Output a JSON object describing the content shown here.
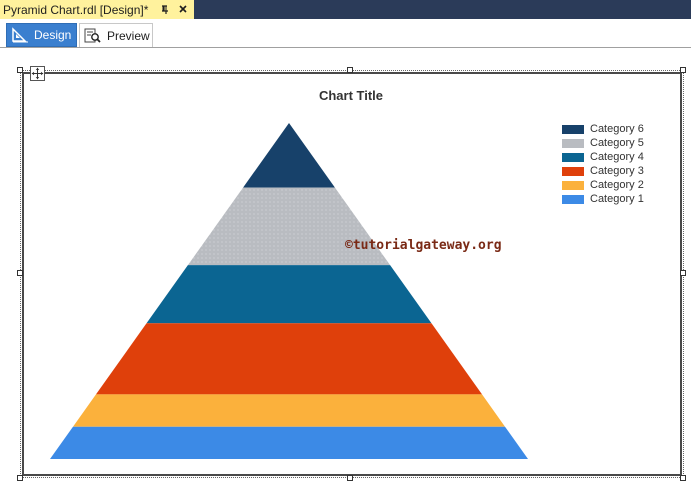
{
  "document_tab": {
    "title": "Pyramid Chart.rdl [Design]*",
    "accent": "#fff29d"
  },
  "view_tabs": [
    {
      "label": "Design",
      "active": true
    },
    {
      "label": "Preview",
      "active": false
    }
  ],
  "chart_data": {
    "type": "pyramid",
    "title": "Chart Title",
    "legend_position": "top-right",
    "categories": [
      "Category 6",
      "Category 5",
      "Category 4",
      "Category 3",
      "Category 2",
      "Category 1"
    ],
    "values": [
      1,
      1.2,
      0.9,
      1.1,
      0.5,
      0.5
    ],
    "colors": [
      "#17416a",
      "#b9bcc1",
      "#0b6592",
      "#df400b",
      "#fbb13c",
      "#3c8ae6"
    ]
  },
  "watermark": "©tutorialgateway.org"
}
